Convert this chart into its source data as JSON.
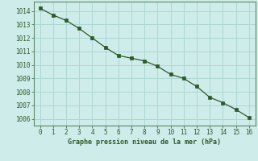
{
  "x": [
    0,
    1,
    2,
    3,
    4,
    5,
    6,
    7,
    8,
    9,
    10,
    11,
    12,
    13,
    14,
    15,
    16
  ],
  "y": [
    1014.2,
    1013.7,
    1013.3,
    1012.7,
    1012.0,
    1011.3,
    1010.7,
    1010.5,
    1010.3,
    1009.9,
    1009.3,
    1009.0,
    1008.4,
    1007.6,
    1007.2,
    1006.7,
    1006.1
  ],
  "line_color": "#2d5a27",
  "marker": "s",
  "marker_size": 2.5,
  "bg_color": "#ceecea",
  "grid_color": "#aed8d4",
  "outer_bg": "#ceecea",
  "xlabel": "Graphe pression niveau de la mer (hPa)",
  "xlabel_color": "#2d5a27",
  "tick_color": "#2d5a27",
  "ylim": [
    1005.5,
    1014.7
  ],
  "xlim": [
    -0.5,
    16.5
  ],
  "yticks": [
    1006,
    1007,
    1008,
    1009,
    1010,
    1011,
    1012,
    1013,
    1014
  ],
  "xticks": [
    0,
    1,
    2,
    3,
    4,
    5,
    6,
    7,
    8,
    9,
    10,
    11,
    12,
    13,
    14,
    15,
    16
  ],
  "spine_color": "#5a8a60",
  "figsize": [
    3.2,
    2.0
  ],
  "dpi": 100
}
